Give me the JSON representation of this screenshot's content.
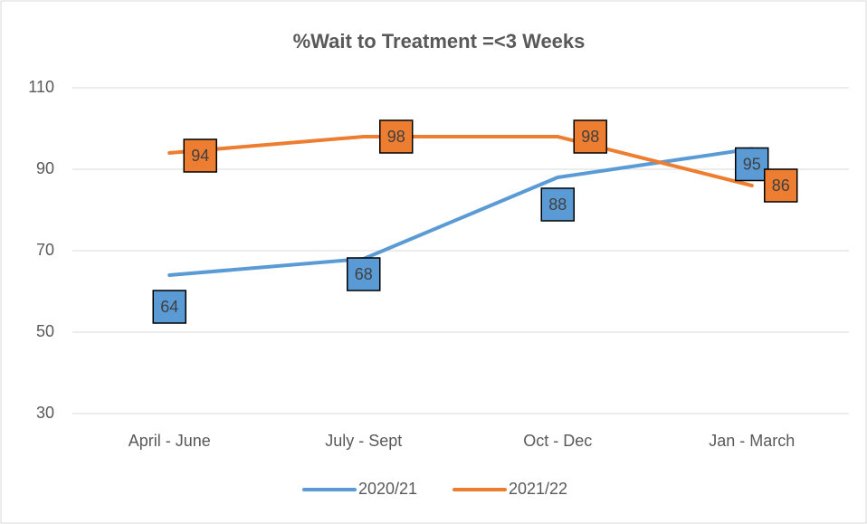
{
  "chart_data": {
    "type": "line",
    "title": "%Wait to Treatment =<3 Weeks",
    "categories": [
      "April - June",
      "July - Sept",
      "Oct - Dec",
      "Jan - March"
    ],
    "series": [
      {
        "name": "2020/21",
        "color": "#5b9bd5",
        "values": [
          64,
          68,
          88,
          95
        ]
      },
      {
        "name": "2021/22",
        "color": "#ed7d31",
        "values": [
          94,
          98,
          98,
          86
        ]
      }
    ],
    "ylim": [
      30,
      110
    ],
    "yticks": [
      30,
      50,
      70,
      90,
      110
    ],
    "grid": true,
    "legend": "bottom"
  }
}
